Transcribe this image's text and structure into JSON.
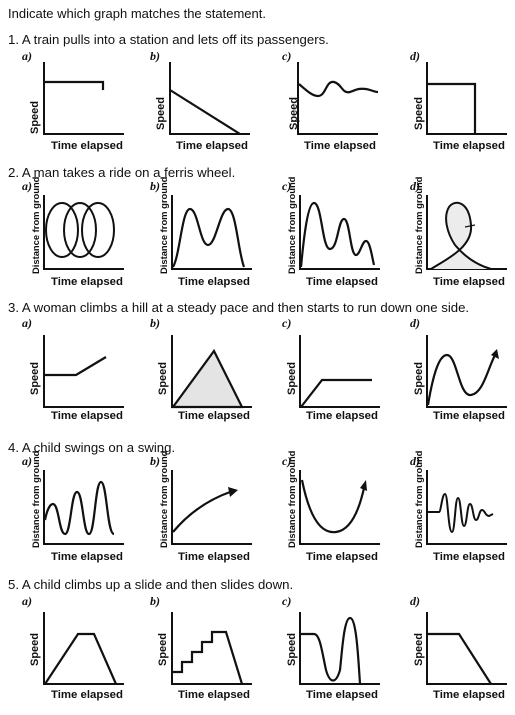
{
  "title": "Indicate which graph matches the statement.",
  "questions": [
    {
      "text": "1. A train pulls into a station and lets off its passengers."
    },
    {
      "text": "2. A man takes a ride on a ferris wheel."
    },
    {
      "text": "3. A woman climbs a hill at a steady pace and then starts to run down one side."
    },
    {
      "text": "4. A child swings on a swing."
    },
    {
      "text": "5. A child climbs up a slide and then slides down."
    }
  ],
  "option_labels": [
    "a)",
    "b)",
    "c)",
    "d)"
  ],
  "axes": {
    "speed": "Speed",
    "distance": "Distance from ground",
    "time": "Time elapsed"
  }
}
